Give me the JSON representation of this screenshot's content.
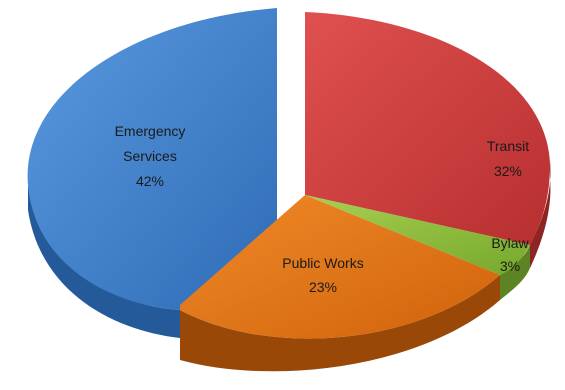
{
  "chart_data": {
    "type": "pie",
    "style": "3d-exploded",
    "title": "",
    "slices": [
      {
        "label": "Emergency Services",
        "label_lines": [
          "Emergency",
          "Services"
        ],
        "value": 42,
        "value_text": "42%",
        "color": "#3a7cc8",
        "side_color": "#245a9a"
      },
      {
        "label": "Transit",
        "label_lines": [
          "Transit"
        ],
        "value": 32,
        "value_text": "32%",
        "color": "#cf3c3c",
        "side_color": "#8e2424"
      },
      {
        "label": "Bylaw",
        "label_lines": [
          "Bylaw"
        ],
        "value": 3,
        "value_text": "3%",
        "color": "#8fbf3a",
        "side_color": "#5c8422"
      },
      {
        "label": "Public Works",
        "label_lines": [
          "Public Works"
        ],
        "value": 23,
        "value_text": "23%",
        "color": "#e8720c",
        "side_color": "#9a4808"
      }
    ]
  }
}
